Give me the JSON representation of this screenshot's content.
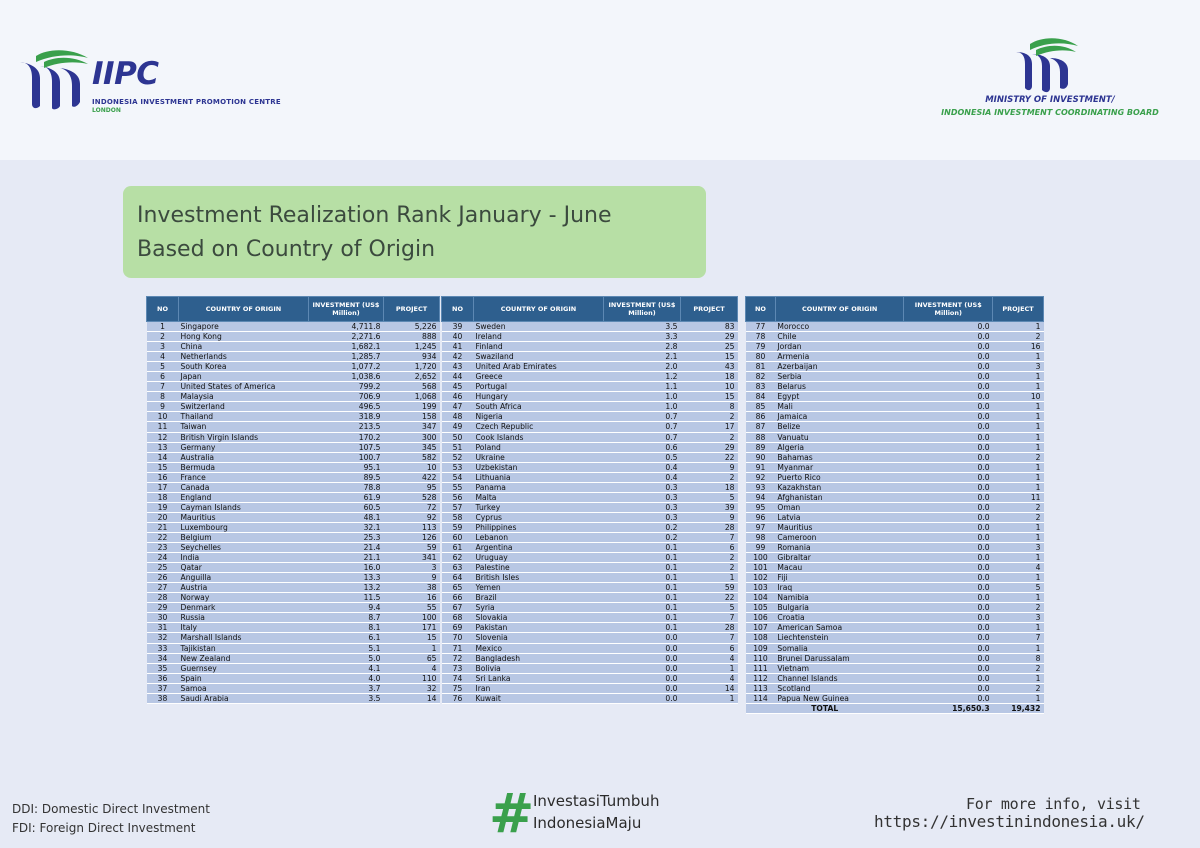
{
  "header": {
    "left_logo": {
      "name": "IIPC",
      "subtitle": "INDONESIA INVESTMENT PROMOTION CENTRE",
      "location": "LONDON"
    },
    "right_logo": {
      "title": "MINISTRY OF INVESTMENT/",
      "subtitle": "INDONESIA INVESTMENT COORDINATING BOARD"
    }
  },
  "title": {
    "line1": "Investment Realization Rank January - June",
    "line2": "Based on Country of Origin"
  },
  "table": {
    "headers": {
      "no": "NO",
      "country": "COUNTRY OF ORIGIN",
      "investment": "INVESTMENT (US$ Million)",
      "project": "PROJECT"
    },
    "rows": [
      [
        "1",
        "Singapore",
        "4,711.8",
        "5,226"
      ],
      [
        "2",
        "Hong Kong",
        "2,271.6",
        "888"
      ],
      [
        "3",
        "China",
        "1,682.1",
        "1,245"
      ],
      [
        "4",
        "Netherlands",
        "1,285.7",
        "934"
      ],
      [
        "5",
        "South Korea",
        "1,077.2",
        "1,720"
      ],
      [
        "6",
        "Japan",
        "1,038.6",
        "2,652"
      ],
      [
        "7",
        "United States of America",
        "799.2",
        "568"
      ],
      [
        "8",
        "Malaysia",
        "706.9",
        "1,068"
      ],
      [
        "9",
        "Switzerland",
        "496.5",
        "199"
      ],
      [
        "10",
        "Thailand",
        "318.9",
        "158"
      ],
      [
        "11",
        "Taiwan",
        "213.5",
        "347"
      ],
      [
        "12",
        "British Virgin Islands",
        "170.2",
        "300"
      ],
      [
        "13",
        "Germany",
        "107.5",
        "345"
      ],
      [
        "14",
        "Australia",
        "100.7",
        "582"
      ],
      [
        "15",
        "Bermuda",
        "95.1",
        "10"
      ],
      [
        "16",
        "France",
        "89.5",
        "422"
      ],
      [
        "17",
        "Canada",
        "78.8",
        "95"
      ],
      [
        "18",
        "England",
        "61.9",
        "528"
      ],
      [
        "19",
        "Cayman Islands",
        "60.5",
        "72"
      ],
      [
        "20",
        "Mauritius",
        "48.1",
        "92"
      ],
      [
        "21",
        "Luxembourg",
        "32.1",
        "113"
      ],
      [
        "22",
        "Belgium",
        "25.3",
        "126"
      ],
      [
        "23",
        "Seychelles",
        "21.4",
        "59"
      ],
      [
        "24",
        "India",
        "21.1",
        "341"
      ],
      [
        "25",
        "Qatar",
        "16.0",
        "3"
      ],
      [
        "26",
        "Anguilla",
        "13.3",
        "9"
      ],
      [
        "27",
        "Austria",
        "13.2",
        "38"
      ],
      [
        "28",
        "Norway",
        "11.5",
        "16"
      ],
      [
        "29",
        "Denmark",
        "9.4",
        "55"
      ],
      [
        "30",
        "Russia",
        "8.7",
        "100"
      ],
      [
        "31",
        "Italy",
        "8.1",
        "171"
      ],
      [
        "32",
        "Marshall Islands",
        "6.1",
        "15"
      ],
      [
        "33",
        "Tajikistan",
        "5.1",
        "1"
      ],
      [
        "34",
        "New Zealand",
        "5.0",
        "65"
      ],
      [
        "35",
        "Guernsey",
        "4.1",
        "4"
      ],
      [
        "36",
        "Spain",
        "4.0",
        "110"
      ],
      [
        "37",
        "Samoa",
        "3.7",
        "32"
      ],
      [
        "38",
        "Saudi Arabia",
        "3.5",
        "14"
      ],
      [
        "39",
        "Sweden",
        "3.5",
        "83"
      ],
      [
        "40",
        "Ireland",
        "3.3",
        "29"
      ],
      [
        "41",
        "Finland",
        "2.8",
        "25"
      ],
      [
        "42",
        "Swaziland",
        "2.1",
        "15"
      ],
      [
        "43",
        "United Arab Emirates",
        "2.0",
        "43"
      ],
      [
        "44",
        "Greece",
        "1.2",
        "18"
      ],
      [
        "45",
        "Portugal",
        "1.1",
        "10"
      ],
      [
        "46",
        "Hungary",
        "1.0",
        "15"
      ],
      [
        "47",
        "South Africa",
        "1.0",
        "8"
      ],
      [
        "48",
        "Nigeria",
        "0.7",
        "2"
      ],
      [
        "49",
        "Czech Republic",
        "0.7",
        "17"
      ],
      [
        "50",
        "Cook Islands",
        "0.7",
        "2"
      ],
      [
        "51",
        "Poland",
        "0.6",
        "29"
      ],
      [
        "52",
        "Ukraine",
        "0.5",
        "22"
      ],
      [
        "53",
        "Uzbekistan",
        "0.4",
        "9"
      ],
      [
        "54",
        "Lithuania",
        "0.4",
        "2"
      ],
      [
        "55",
        "Panama",
        "0.3",
        "18"
      ],
      [
        "56",
        "Malta",
        "0.3",
        "5"
      ],
      [
        "57",
        "Turkey",
        "0.3",
        "39"
      ],
      [
        "58",
        "Cyprus",
        "0.3",
        "9"
      ],
      [
        "59",
        "Philippines",
        "0.2",
        "28"
      ],
      [
        "60",
        "Lebanon",
        "0.2",
        "7"
      ],
      [
        "61",
        "Argentina",
        "0.1",
        "6"
      ],
      [
        "62",
        "Uruguay",
        "0.1",
        "2"
      ],
      [
        "63",
        "Palestine",
        "0.1",
        "2"
      ],
      [
        "64",
        "British Isles",
        "0.1",
        "1"
      ],
      [
        "65",
        "Yemen",
        "0.1",
        "59"
      ],
      [
        "66",
        "Brazil",
        "0.1",
        "22"
      ],
      [
        "67",
        "Syria",
        "0.1",
        "5"
      ],
      [
        "68",
        "Slovakia",
        "0.1",
        "7"
      ],
      [
        "69",
        "Pakistan",
        "0.1",
        "28"
      ],
      [
        "70",
        "Slovenia",
        "0.0",
        "7"
      ],
      [
        "71",
        "Mexico",
        "0.0",
        "6"
      ],
      [
        "72",
        "Bangladesh",
        "0.0",
        "4"
      ],
      [
        "73",
        "Bolivia",
        "0.0",
        "1"
      ],
      [
        "74",
        "Sri Lanka",
        "0.0",
        "4"
      ],
      [
        "75",
        "Iran",
        "0.0",
        "14"
      ],
      [
        "76",
        "Kuwait",
        "0.0",
        "1"
      ],
      [
        "77",
        "Morocco",
        "0.0",
        "1"
      ],
      [
        "78",
        "Chile",
        "0.0",
        "2"
      ],
      [
        "79",
        "Jordan",
        "0.0",
        "16"
      ],
      [
        "80",
        "Armenia",
        "0.0",
        "1"
      ],
      [
        "81",
        "Azerbaijan",
        "0.0",
        "3"
      ],
      [
        "82",
        "Serbia",
        "0.0",
        "1"
      ],
      [
        "83",
        "Belarus",
        "0.0",
        "1"
      ],
      [
        "84",
        "Egypt",
        "0.0",
        "10"
      ],
      [
        "85",
        "Mali",
        "0.0",
        "1"
      ],
      [
        "86",
        "Jamaica",
        "0.0",
        "1"
      ],
      [
        "87",
        "Belize",
        "0.0",
        "1"
      ],
      [
        "88",
        "Vanuatu",
        "0.0",
        "1"
      ],
      [
        "89",
        "Algeria",
        "0.0",
        "1"
      ],
      [
        "90",
        "Bahamas",
        "0.0",
        "2"
      ],
      [
        "91",
        "Myanmar",
        "0.0",
        "1"
      ],
      [
        "92",
        "Puerto Rico",
        "0.0",
        "1"
      ],
      [
        "93",
        "Kazakhstan",
        "0.0",
        "1"
      ],
      [
        "94",
        "Afghanistan",
        "0.0",
        "11"
      ],
      [
        "95",
        "Oman",
        "0.0",
        "2"
      ],
      [
        "96",
        "Latvia",
        "0.0",
        "2"
      ],
      [
        "97",
        "Mauritius",
        "0.0",
        "1"
      ],
      [
        "98",
        "Cameroon",
        "0.0",
        "1"
      ],
      [
        "99",
        "Romania",
        "0.0",
        "3"
      ],
      [
        "100",
        "Gibraltar",
        "0.0",
        "1"
      ],
      [
        "101",
        "Macau",
        "0.0",
        "4"
      ],
      [
        "102",
        "Fiji",
        "0.0",
        "1"
      ],
      [
        "103",
        "Iraq",
        "0.0",
        "5"
      ],
      [
        "104",
        "Namibia",
        "0.0",
        "1"
      ],
      [
        "105",
        "Bulgaria",
        "0.0",
        "2"
      ],
      [
        "106",
        "Croatia",
        "0.0",
        "3"
      ],
      [
        "107",
        "American Samoa",
        "0.0",
        "1"
      ],
      [
        "108",
        "Liechtenstein",
        "0.0",
        "7"
      ],
      [
        "109",
        "Somalia",
        "0.0",
        "1"
      ],
      [
        "110",
        "Brunei Darussalam",
        "0.0",
        "8"
      ],
      [
        "111",
        "Vietnam",
        "0.0",
        "2"
      ],
      [
        "112",
        "Channel Islands",
        "0.0",
        "1"
      ],
      [
        "113",
        "Scotland",
        "0.0",
        "2"
      ],
      [
        "114",
        "Papua New Guinea",
        "0.0",
        "1"
      ]
    ],
    "total": {
      "label": "TOTAL",
      "investment": "15,650.3",
      "project": "19,432"
    }
  },
  "footer": {
    "ddi": "DDI: Domestic Direct Investment",
    "fdi": "FDI: Foreign Direct Investment",
    "hashtag_symbol": "#",
    "hashtag1": "InvestasiTumbuh",
    "hashtag2": "IndonesiaMaju",
    "info_line1": "For more info, visit",
    "info_line2": "https://investinindonesia.uk/"
  },
  "colors": {
    "header_blue": "#2e5f8e",
    "row_blue": "#b8c7e4",
    "title_green": "#b7dfa5",
    "brand_navy": "#2d3592",
    "brand_green": "#3aa04c"
  }
}
